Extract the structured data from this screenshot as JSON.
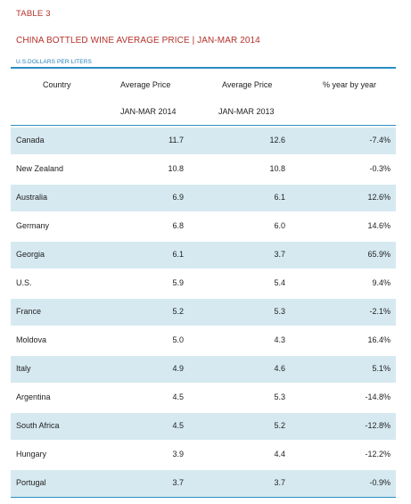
{
  "table_number": "TABLE 3",
  "title": "CHINA BOTTLED WINE AVERAGE PRICE | JAN-MAR 2014",
  "units": "U.S.DOLLARS PER LITERS",
  "columns": {
    "country": "Country",
    "price_2014": "Average Price",
    "price_2014_period": "JAN-MAR 2014",
    "price_2013": "Average Price",
    "price_2013_period": "JAN-MAR 2013",
    "yoy": "% year by year"
  },
  "rows": [
    {
      "country": "Canada",
      "price_2014": "11.7",
      "price_2013": "12.6",
      "yoy": "-7.4%"
    },
    {
      "country": "New Zealand",
      "price_2014": "10.8",
      "price_2013": "10.8",
      "yoy": "-0.3%"
    },
    {
      "country": "Australia",
      "price_2014": "6.9",
      "price_2013": "6.1",
      "yoy": "12.6%"
    },
    {
      "country": "Germany",
      "price_2014": "6.8",
      "price_2013": "6.0",
      "yoy": "14.6%"
    },
    {
      "country": "Georgia",
      "price_2014": "6.1",
      "price_2013": "3.7",
      "yoy": "65.9%"
    },
    {
      "country": "U.S.",
      "price_2014": "5.9",
      "price_2013": "5.4",
      "yoy": "9.4%"
    },
    {
      "country": "France",
      "price_2014": "5.2",
      "price_2013": "5.3",
      "yoy": "-2.1%"
    },
    {
      "country": "Moldova",
      "price_2014": "5.0",
      "price_2013": "4.3",
      "yoy": "16.4%"
    },
    {
      "country": "Italy",
      "price_2014": "4.9",
      "price_2013": "4.6",
      "yoy": "5.1%"
    },
    {
      "country": "Argentina",
      "price_2014": "4.5",
      "price_2013": "5.3",
      "yoy": "-14.8%"
    },
    {
      "country": "South Africa",
      "price_2014": "4.5",
      "price_2013": "5.2",
      "yoy": "-12.8%"
    },
    {
      "country": "Hungary",
      "price_2014": "3.9",
      "price_2013": "4.4",
      "yoy": "-12.2%"
    },
    {
      "country": "Portugal",
      "price_2014": "3.7",
      "price_2013": "3.7",
      "yoy": "-0.9%"
    }
  ],
  "colors": {
    "title_red": "#b5312b",
    "accent_blue": "#2a8fc4",
    "row_shade": "#d6e9f1"
  }
}
